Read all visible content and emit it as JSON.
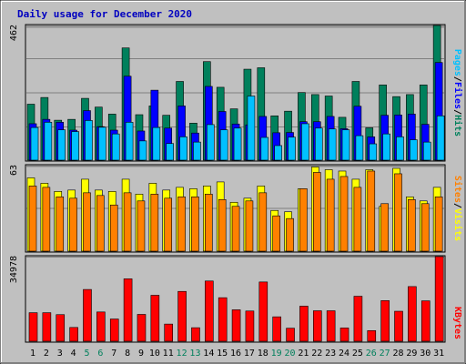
{
  "chart_data": {
    "type": "bar",
    "title": "Daily usage for December 2020",
    "colors": {
      "background": "#c0c0c0",
      "panel_border": "#000000",
      "title": "#0000c0",
      "gridline": "#808080",
      "weekday_label": "#000000",
      "weekend_label": "#00805c",
      "hits": "#00805c",
      "files": "#0000ff",
      "pages": "#00c0ff",
      "visits": "#ffff00",
      "sites": "#ff8000",
      "kbytes": "#ff0000",
      "separator": "#000000"
    },
    "categories": [
      "1",
      "2",
      "3",
      "4",
      "5",
      "6",
      "7",
      "8",
      "9",
      "10",
      "11",
      "12",
      "13",
      "14",
      "15",
      "16",
      "17",
      "18",
      "19",
      "20",
      "21",
      "22",
      "23",
      "24",
      "25",
      "26",
      "27",
      "28",
      "29",
      "30",
      "31"
    ],
    "weekend_days": [
      "5",
      "6",
      "12",
      "13",
      "19",
      "20",
      "26",
      "27"
    ],
    "panels": [
      {
        "id": "hits-files-pages",
        "ymax_label": "462",
        "ylim": [
          0,
          462
        ],
        "legend": [
          {
            "label": "Pages",
            "color_key": "pages"
          },
          {
            "label": "/",
            "color_key": "separator"
          },
          {
            "label": "Files",
            "color_key": "files"
          },
          {
            "label": "/",
            "color_key": "separator"
          },
          {
            "label": "Hits",
            "color_key": "hits"
          }
        ],
        "series": [
          {
            "name": "Hits",
            "color_key": "hits",
            "values": [
              192,
              215,
              137,
              140,
              212,
              182,
              158,
              385,
              156,
              186,
              154,
              270,
              127,
              338,
              250,
              176,
              312,
              317,
              152,
              168,
              232,
              225,
              220,
              147,
              270,
              111,
              258,
              218,
              225,
              258,
              462
            ]
          },
          {
            "name": "Files",
            "color_key": "files",
            "values": [
              125,
              140,
              130,
              103,
              170,
              115,
              103,
              288,
              100,
              240,
              110,
              186,
              93,
              253,
              167,
              124,
              121,
              150,
              94,
              95,
              132,
              132,
              150,
              108,
              185,
              80,
              154,
              155,
              158,
              123,
              335
            ]
          },
          {
            "name": "Pages",
            "color_key": "pages",
            "values": [
              112,
              130,
              104,
              98,
              136,
              113,
              90,
              130,
              66,
              112,
              57,
              80,
              62,
              122,
              104,
              110,
              220,
              78,
              50,
              79,
              125,
              110,
              107,
              104,
              84,
              56,
              90,
              80,
              70,
              62,
              152
            ]
          }
        ]
      },
      {
        "id": "visits-sites",
        "ymax_label": "63",
        "ylim": [
          0,
          63
        ],
        "legend": [
          {
            "label": "Sites",
            "color_key": "sites"
          },
          {
            "label": "/",
            "color_key": "separator"
          },
          {
            "label": "Visits",
            "color_key": "visits"
          }
        ],
        "series": [
          {
            "name": "Visits",
            "color_key": "visits",
            "values": [
              54,
              50,
              44,
              45,
              53,
              45,
              44,
              53,
              42,
              50,
              45,
              47,
              46,
              48,
              51,
              36,
              39,
              48,
              30,
              29,
              46,
              62,
              60,
              59,
              53,
              60,
              33,
              61,
              40,
              37,
              47
            ]
          },
          {
            "name": "Sites",
            "color_key": "sites",
            "values": [
              48,
              47,
              40,
              39,
              43,
              41,
              34,
              43,
              37,
              42,
              39,
              40,
              40,
              42,
              38,
              33,
              37,
              43,
              26,
              24,
              46,
              58,
              53,
              55,
              47,
              59,
              35,
              57,
              38,
              35,
              40
            ]
          }
        ]
      },
      {
        "id": "kbytes",
        "ymax_label": "34978",
        "ylim": [
          0,
          34978
        ],
        "legend": [
          {
            "label": "KBytes",
            "color_key": "kbytes"
          }
        ],
        "series": [
          {
            "name": "KBytes",
            "color_key": "kbytes",
            "values": [
              11800,
              11800,
              11000,
              5700,
              21400,
              12100,
              9200,
              25800,
              11100,
              19000,
              7100,
              20600,
              5600,
              24900,
              18000,
              13000,
              12500,
              24500,
              10100,
              5400,
              14500,
              12600,
              12600,
              5500,
              18600,
              4400,
              16800,
              12400,
              22600,
              16700,
              34978
            ]
          }
        ]
      }
    ]
  }
}
